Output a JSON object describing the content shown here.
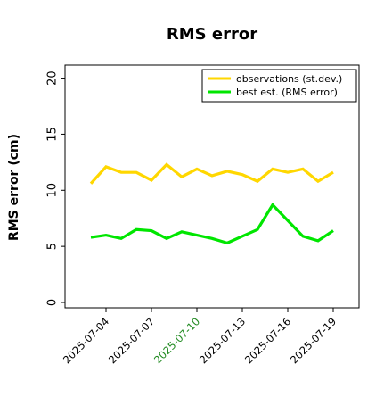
{
  "chart_data": {
    "type": "line",
    "title": "RMS error",
    "xlabel": "",
    "ylabel": "RMS error (cm)",
    "ylim": [
      0,
      21
    ],
    "yticks": [
      0,
      5,
      10,
      15,
      20
    ],
    "xticks": [
      {
        "label": "2025-07-04",
        "highlight": false
      },
      {
        "label": "2025-07-07",
        "highlight": false
      },
      {
        "label": "2025-07-10",
        "highlight": true
      },
      {
        "label": "2025-07-13",
        "highlight": false
      },
      {
        "label": "2025-07-16",
        "highlight": false
      },
      {
        "label": "2025-07-19",
        "highlight": false
      }
    ],
    "x": [
      "2025-07-03",
      "2025-07-04",
      "2025-07-05",
      "2025-07-06",
      "2025-07-07",
      "2025-07-08",
      "2025-07-09",
      "2025-07-10",
      "2025-07-11",
      "2025-07-12",
      "2025-07-13",
      "2025-07-14",
      "2025-07-15",
      "2025-07-16",
      "2025-07-17",
      "2025-07-18",
      "2025-07-19"
    ],
    "series": [
      {
        "name": "observations (st.dev.)",
        "color": "#ffd700",
        "values": [
          10.6,
          12.1,
          11.6,
          11.6,
          10.9,
          12.3,
          11.2,
          11.9,
          11.3,
          11.7,
          11.4,
          10.8,
          11.9,
          11.6,
          11.9,
          10.8,
          11.6
        ]
      },
      {
        "name": "best est. (RMS error)",
        "color": "#00e600",
        "values": [
          5.8,
          6.0,
          5.7,
          6.5,
          6.4,
          5.7,
          6.3,
          6.0,
          5.7,
          5.3,
          5.9,
          6.5,
          8.7,
          7.3,
          5.9,
          5.5,
          6.4
        ]
      }
    ],
    "legend_position": "top-right",
    "grid": false,
    "highlight_color": "#228b22"
  }
}
